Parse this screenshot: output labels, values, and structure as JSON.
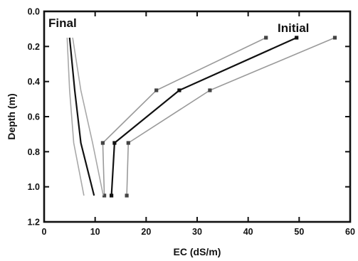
{
  "chart_data": {
    "type": "line",
    "xlabel": "EC (dS/m)",
    "ylabel": "Depth (m)",
    "xlim": [
      0,
      60
    ],
    "ylim": [
      0.0,
      1.2
    ],
    "y_inverted": true,
    "x_axis_position": "bottom",
    "xticks": [
      "0",
      "10",
      "20",
      "30",
      "40",
      "50",
      "60"
    ],
    "yticks": [
      "0.0",
      "0.2",
      "0.4",
      "0.6",
      "0.8",
      "1.0",
      "1.2"
    ],
    "grid": false,
    "legend": "none",
    "annotations": [
      {
        "text": "Final"
      },
      {
        "text": "Initial"
      }
    ],
    "series": [
      {
        "group": "initial",
        "style": "mean",
        "color": "#111111",
        "marker": true,
        "points": [
          [
            49.5,
            0.15
          ],
          [
            26.5,
            0.45
          ],
          [
            13.8,
            0.75
          ],
          [
            13.2,
            1.05
          ]
        ]
      },
      {
        "group": "initial",
        "style": "bound",
        "color": "#9a9a9a",
        "marker": true,
        "points": [
          [
            43.5,
            0.15
          ],
          [
            22,
            0.45
          ],
          [
            11.5,
            0.75
          ],
          [
            11.8,
            1.05
          ]
        ]
      },
      {
        "group": "initial",
        "style": "bound",
        "color": "#9a9a9a",
        "marker": true,
        "points": [
          [
            57,
            0.15
          ],
          [
            32.5,
            0.45
          ],
          [
            16.5,
            0.75
          ],
          [
            16.2,
            1.05
          ]
        ]
      },
      {
        "group": "final",
        "style": "mean",
        "color": "#111111",
        "marker": false,
        "points": [
          [
            5,
            0.15
          ],
          [
            6,
            0.45
          ],
          [
            7.2,
            0.75
          ],
          [
            9.8,
            1.05
          ]
        ]
      },
      {
        "group": "final",
        "style": "bound",
        "color": "#a8a8a8",
        "marker": false,
        "points": [
          [
            4.5,
            0.15
          ],
          [
            5,
            0.45
          ],
          [
            5.8,
            0.75
          ],
          [
            7.8,
            1.05
          ]
        ]
      },
      {
        "group": "final",
        "style": "bound",
        "color": "#a8a8a8",
        "marker": false,
        "points": [
          [
            5.6,
            0.15
          ],
          [
            7.2,
            0.45
          ],
          [
            9.5,
            0.75
          ],
          [
            11.6,
            1.05
          ]
        ]
      }
    ]
  }
}
